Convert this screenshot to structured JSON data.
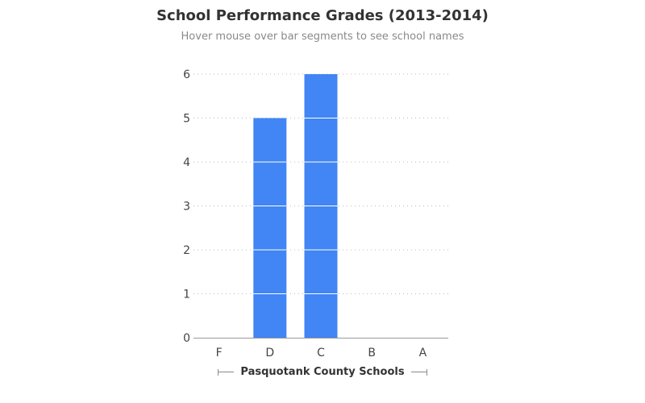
{
  "chart_data": {
    "type": "bar",
    "title": "School Performance Grades (2013-2014)",
    "subtitle": "Hover mouse over bar segments to see school names",
    "xlabel": "Pasquotank County Schools",
    "ylabel": "",
    "categories": [
      "F",
      "D",
      "C",
      "B",
      "A"
    ],
    "values": [
      0,
      5,
      6,
      0,
      0
    ],
    "segment_unit": 1,
    "ylim": [
      0,
      6
    ],
    "yticks": [
      0,
      1,
      2,
      3,
      4,
      5,
      6
    ],
    "grid": true,
    "legend": "none",
    "bar_color": "#4285f4",
    "segment_divider_color": "#ffffff",
    "grid_color": "#bbbbbb",
    "axis_color": "#999999",
    "tick_label_color": "#444444"
  }
}
